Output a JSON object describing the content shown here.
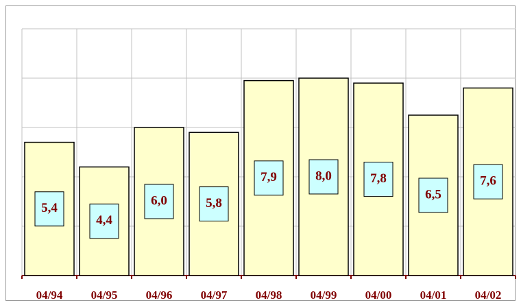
{
  "chart_data": {
    "type": "bar",
    "categories": [
      "04/94",
      "04/95",
      "04/96",
      "04/97",
      "04/98",
      "04/99",
      "04/00",
      "04/01",
      "04/02"
    ],
    "values": [
      5.4,
      4.4,
      6.0,
      5.8,
      7.9,
      8.0,
      7.8,
      6.5,
      7.6
    ],
    "value_labels": [
      "5,4",
      "4,4",
      "6,0",
      "5,8",
      "7,9",
      "8,0",
      "7,8",
      "6,5",
      "7,6"
    ],
    "color": "#ffffcc",
    "label_box_color": "#ccffff",
    "text_color": "#800000",
    "ylim": [
      0,
      10
    ],
    "yticks": [
      0,
      2,
      4,
      6,
      8,
      10
    ],
    "grid": true
  }
}
